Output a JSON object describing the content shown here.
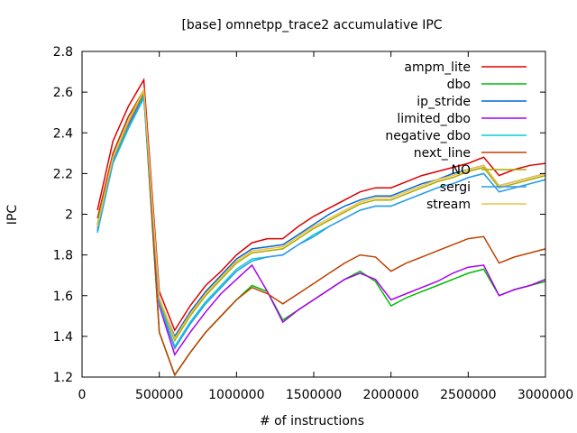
{
  "chart_data": {
    "type": "line",
    "title": "[base] omnetpp_trace2 accumulative IPC",
    "xlabel": "# of instructions",
    "ylabel": "IPC",
    "xlim": [
      0,
      3000000
    ],
    "ylim": [
      1.2,
      2.8
    ],
    "xticks": [
      0,
      500000,
      1000000,
      1500000,
      2000000,
      2500000,
      3000000
    ],
    "xtick_labels": [
      "0",
      "500000",
      "1000000",
      "1500000",
      "2000000",
      "2500000",
      "3000000"
    ],
    "yticks": [
      1.2,
      1.4,
      1.6,
      1.8,
      2.0,
      2.2,
      2.4,
      2.6,
      2.8
    ],
    "ytick_labels": [
      "1.2",
      "1.4",
      "1.6",
      "1.8",
      "2",
      "2.2",
      "2.4",
      "2.6",
      "2.8"
    ],
    "grid": false,
    "legend_position": "top-right",
    "x": [
      100000,
      200000,
      300000,
      400000,
      500000,
      600000,
      700000,
      800000,
      900000,
      1000000,
      1100000,
      1200000,
      1300000,
      1400000,
      1500000,
      1600000,
      1700000,
      1800000,
      1900000,
      2000000,
      2100000,
      2200000,
      2300000,
      2400000,
      2500000,
      2600000,
      2700000,
      2800000,
      2900000,
      3000000
    ],
    "series": [
      {
        "name": "ampm_lite",
        "color": "#dd0000",
        "values": [
          2.02,
          2.36,
          2.53,
          2.66,
          1.62,
          1.43,
          1.55,
          1.65,
          1.72,
          1.8,
          1.86,
          1.88,
          1.88,
          1.94,
          1.99,
          2.03,
          2.07,
          2.11,
          2.13,
          2.13,
          2.16,
          2.19,
          2.21,
          2.23,
          2.25,
          2.28,
          2.19,
          2.22,
          2.24,
          2.25
        ]
      },
      {
        "name": "dbo",
        "color": "#00bb00",
        "values": [
          1.95,
          2.27,
          2.45,
          2.59,
          1.42,
          1.21,
          1.32,
          1.42,
          1.5,
          1.58,
          1.65,
          1.62,
          1.48,
          1.53,
          1.58,
          1.63,
          1.68,
          1.72,
          1.67,
          1.55,
          1.59,
          1.62,
          1.65,
          1.68,
          1.71,
          1.73,
          1.6,
          1.63,
          1.65,
          1.67
        ]
      },
      {
        "name": "ip_stride",
        "color": "#0066dd",
        "values": [
          1.91,
          2.3,
          2.48,
          2.6,
          1.58,
          1.4,
          1.52,
          1.62,
          1.7,
          1.78,
          1.83,
          1.84,
          1.85,
          1.9,
          1.95,
          2.0,
          2.04,
          2.07,
          2.09,
          2.09,
          2.12,
          2.15,
          2.17,
          2.2,
          2.22,
          2.24,
          2.14,
          2.16,
          2.18,
          2.2
        ]
      },
      {
        "name": "limited_dbo",
        "color": "#aa00ee",
        "values": [
          1.94,
          2.26,
          2.44,
          2.58,
          1.55,
          1.31,
          1.42,
          1.52,
          1.61,
          1.68,
          1.75,
          1.62,
          1.47,
          1.53,
          1.58,
          1.63,
          1.68,
          1.71,
          1.68,
          1.58,
          1.61,
          1.64,
          1.67,
          1.71,
          1.74,
          1.75,
          1.6,
          1.63,
          1.65,
          1.68
        ]
      },
      {
        "name": "negative_dbo",
        "color": "#00d0d0",
        "values": [
          1.91,
          2.25,
          2.42,
          2.57,
          1.57,
          1.35,
          1.47,
          1.57,
          1.65,
          1.73,
          1.78,
          1.79,
          1.8,
          1.85,
          1.9,
          1.94,
          1.98,
          2.02,
          2.04,
          2.04,
          2.07,
          2.1,
          2.13,
          2.15,
          2.18,
          2.2,
          2.11,
          2.13,
          2.15,
          2.17
        ]
      },
      {
        "name": "next_line",
        "color": "#c04000",
        "values": [
          1.98,
          2.3,
          2.48,
          2.61,
          1.42,
          1.21,
          1.32,
          1.42,
          1.5,
          1.58,
          1.64,
          1.61,
          1.56,
          1.61,
          1.66,
          1.71,
          1.76,
          1.8,
          1.79,
          1.72,
          1.76,
          1.79,
          1.82,
          1.85,
          1.88,
          1.89,
          1.76,
          1.79,
          1.81,
          1.83
        ]
      },
      {
        "name": "NO",
        "color": "#aaaa00",
        "values": [
          1.93,
          2.27,
          2.45,
          2.6,
          1.58,
          1.38,
          1.5,
          1.6,
          1.68,
          1.76,
          1.81,
          1.82,
          1.83,
          1.88,
          1.93,
          1.97,
          2.01,
          2.05,
          2.07,
          2.07,
          2.1,
          2.13,
          2.16,
          2.18,
          2.21,
          2.23,
          2.13,
          2.15,
          2.17,
          2.19
        ]
      },
      {
        "name": "sergi",
        "color": "#3399ee",
        "values": [
          1.92,
          2.26,
          2.43,
          2.58,
          1.56,
          1.34,
          1.46,
          1.56,
          1.64,
          1.72,
          1.77,
          1.79,
          1.8,
          1.85,
          1.89,
          1.94,
          1.98,
          2.02,
          2.04,
          2.04,
          2.07,
          2.1,
          2.13,
          2.15,
          2.18,
          2.2,
          2.11,
          2.13,
          2.15,
          2.17
        ]
      },
      {
        "name": "stream",
        "color": "#f0c040",
        "values": [
          1.94,
          2.28,
          2.46,
          2.61,
          1.59,
          1.39,
          1.51,
          1.61,
          1.69,
          1.77,
          1.82,
          1.83,
          1.84,
          1.89,
          1.94,
          1.98,
          2.02,
          2.06,
          2.08,
          2.08,
          2.11,
          2.14,
          2.17,
          2.19,
          2.22,
          2.24,
          2.14,
          2.16,
          2.18,
          2.2
        ]
      }
    ]
  }
}
